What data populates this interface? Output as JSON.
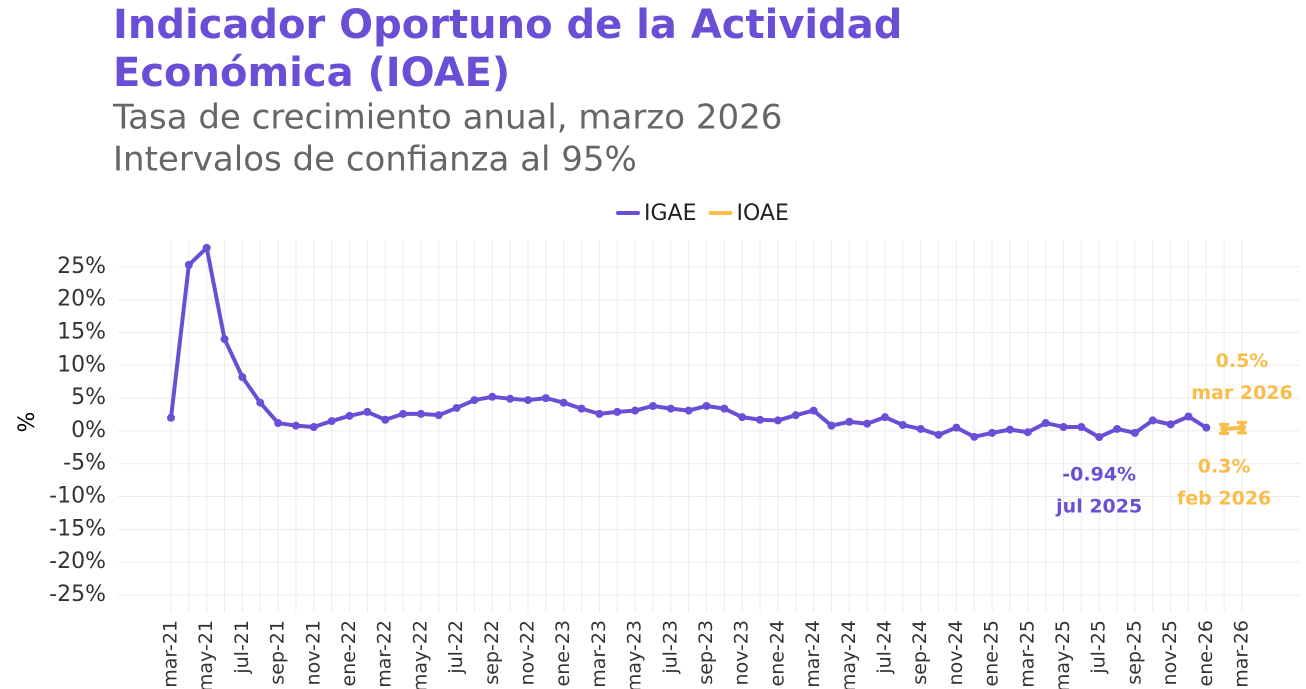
{
  "chart_data": {
    "type": "line",
    "title": [
      "Indicador Oportuno de la Actividad",
      "Económica (IOAE)"
    ],
    "subtitle": [
      "Tasa de crecimiento anual, marzo 2026",
      "Intervalos de confianza al 95%"
    ],
    "y_label": "%",
    "categories": [
      "mar-21",
      null,
      "may-21",
      null,
      "jul-21",
      null,
      "sep-21",
      null,
      "nov-21",
      null,
      "ene-22",
      null,
      "mar-22",
      null,
      "may-22",
      null,
      "jul-22",
      null,
      "sep-22",
      null,
      "nov-22",
      null,
      "ene-23",
      null,
      "mar-23",
      null,
      "may-23",
      null,
      "jul-23",
      null,
      "sep-23",
      null,
      "nov-23",
      null,
      "ene-24",
      null,
      "mar-24",
      null,
      "may-24",
      null,
      "jul-24",
      null,
      "sep-24",
      null,
      "nov-24",
      null,
      "ene-25",
      null,
      "mar-25",
      null,
      "may-25",
      null,
      "jul-25",
      null,
      "sep-25",
      null,
      "nov-25",
      null,
      "ene-26",
      null,
      "mar-26"
    ],
    "series": [
      {
        "name": "IGAE",
        "color": "#6a4fd6",
        "values": [
          2.0,
          25.3,
          27.9,
          14.0,
          8.2,
          4.3,
          1.2,
          0.8,
          0.6,
          1.5,
          2.3,
          2.9,
          1.7,
          2.6,
          2.6,
          2.4,
          3.5,
          4.7,
          5.2,
          4.9,
          4.7,
          5.0,
          4.3,
          3.4,
          2.6,
          2.9,
          3.1,
          3.8,
          3.4,
          3.1,
          3.8,
          3.4,
          2.1,
          1.7,
          1.6,
          2.4,
          3.1,
          0.8,
          1.4,
          1.1,
          2.1,
          0.9,
          0.3,
          -0.6,
          0.5,
          -0.9,
          -0.3,
          0.2,
          -0.2,
          1.2,
          0.6,
          0.6,
          -0.94,
          0.3,
          -0.3,
          1.6,
          1.0,
          2.2,
          0.5,
          null,
          null
        ],
        "value_labels": [
          null,
          null,
          null,
          null,
          null,
          null,
          null,
          null,
          null,
          null,
          null,
          null,
          null,
          null,
          null,
          null,
          null,
          null,
          null,
          null,
          null,
          null,
          null,
          null,
          null,
          null,
          null,
          null,
          null,
          null,
          null,
          null,
          null,
          null,
          null,
          null,
          null,
          null,
          null,
          null,
          null,
          null,
          null,
          null,
          null,
          null,
          null,
          null,
          null,
          null,
          null,
          null,
          "-0.94%",
          null,
          null,
          null,
          null,
          null,
          null,
          null,
          null
        ],
        "point_labels": [
          null,
          null,
          null,
          null,
          null,
          null,
          null,
          null,
          null,
          null,
          null,
          null,
          null,
          null,
          null,
          null,
          null,
          null,
          null,
          null,
          null,
          null,
          null,
          null,
          null,
          null,
          null,
          null,
          null,
          null,
          null,
          null,
          null,
          null,
          null,
          null,
          null,
          null,
          null,
          null,
          null,
          null,
          null,
          null,
          null,
          null,
          null,
          null,
          null,
          null,
          null,
          null,
          "jul 2025",
          null,
          null,
          null,
          null,
          null,
          null,
          null,
          null
        ]
      },
      {
        "name": "IOAE",
        "color": "#f9be4a",
        "values": [
          null,
          null,
          null,
          null,
          null,
          null,
          null,
          null,
          null,
          null,
          null,
          null,
          null,
          null,
          null,
          null,
          null,
          null,
          null,
          null,
          null,
          null,
          null,
          null,
          null,
          null,
          null,
          null,
          null,
          null,
          null,
          null,
          null,
          null,
          null,
          null,
          null,
          null,
          null,
          null,
          null,
          null,
          null,
          null,
          null,
          null,
          null,
          null,
          null,
          null,
          null,
          null,
          null,
          null,
          null,
          null,
          null,
          null,
          null,
          0.3,
          0.5
        ],
        "ci_low": [
          null,
          null,
          null,
          null,
          null,
          null,
          null,
          null,
          null,
          null,
          null,
          null,
          null,
          null,
          null,
          null,
          null,
          null,
          null,
          null,
          null,
          null,
          null,
          null,
          null,
          null,
          null,
          null,
          null,
          null,
          null,
          null,
          null,
          null,
          null,
          null,
          null,
          null,
          null,
          null,
          null,
          null,
          null,
          null,
          null,
          null,
          null,
          null,
          null,
          null,
          null,
          null,
          null,
          null,
          null,
          null,
          null,
          null,
          null,
          -0.4,
          -0.3
        ],
        "ci_high": [
          null,
          null,
          null,
          null,
          null,
          null,
          null,
          null,
          null,
          null,
          null,
          null,
          null,
          null,
          null,
          null,
          null,
          null,
          null,
          null,
          null,
          null,
          null,
          null,
          null,
          null,
          null,
          null,
          null,
          null,
          null,
          null,
          null,
          null,
          null,
          null,
          null,
          null,
          null,
          null,
          null,
          null,
          null,
          null,
          null,
          null,
          null,
          null,
          null,
          null,
          null,
          null,
          null,
          null,
          null,
          null,
          null,
          null,
          null,
          1.0,
          1.3
        ],
        "value_labels": [
          null,
          null,
          null,
          null,
          null,
          null,
          null,
          null,
          null,
          null,
          null,
          null,
          null,
          null,
          null,
          null,
          null,
          null,
          null,
          null,
          null,
          null,
          null,
          null,
          null,
          null,
          null,
          null,
          null,
          null,
          null,
          null,
          null,
          null,
          null,
          null,
          null,
          null,
          null,
          null,
          null,
          null,
          null,
          null,
          null,
          null,
          null,
          null,
          null,
          null,
          null,
          null,
          null,
          null,
          null,
          null,
          null,
          null,
          null,
          "0.3%",
          "0.5%"
        ],
        "point_labels": [
          null,
          null,
          null,
          null,
          null,
          null,
          null,
          null,
          null,
          null,
          null,
          null,
          null,
          null,
          null,
          null,
          null,
          null,
          null,
          null,
          null,
          null,
          null,
          null,
          null,
          null,
          null,
          null,
          null,
          null,
          null,
          null,
          null,
          null,
          null,
          null,
          null,
          null,
          null,
          null,
          null,
          null,
          null,
          null,
          null,
          null,
          null,
          null,
          null,
          null,
          null,
          null,
          null,
          null,
          null,
          null,
          null,
          null,
          null,
          "feb 2026",
          "mar 2026"
        ]
      }
    ],
    "ylim": [
      -27.6,
      29.1
    ],
    "yticks": [
      {
        "value": -25,
        "label": "-25%"
      },
      {
        "value": -20,
        "label": "-20%"
      },
      {
        "value": -15,
        "label": "-15%"
      },
      {
        "value": -10,
        "label": "-10%"
      },
      {
        "value": -5,
        "label": "-5%"
      },
      {
        "value": 0,
        "label": "0%"
      },
      {
        "value": 5,
        "label": "5%"
      },
      {
        "value": 10,
        "label": "10%"
      },
      {
        "value": 15,
        "label": "15%"
      },
      {
        "value": 20,
        "label": "20%"
      },
      {
        "value": 25,
        "label": "25%"
      }
    ],
    "grid": true,
    "legend": "top"
  }
}
